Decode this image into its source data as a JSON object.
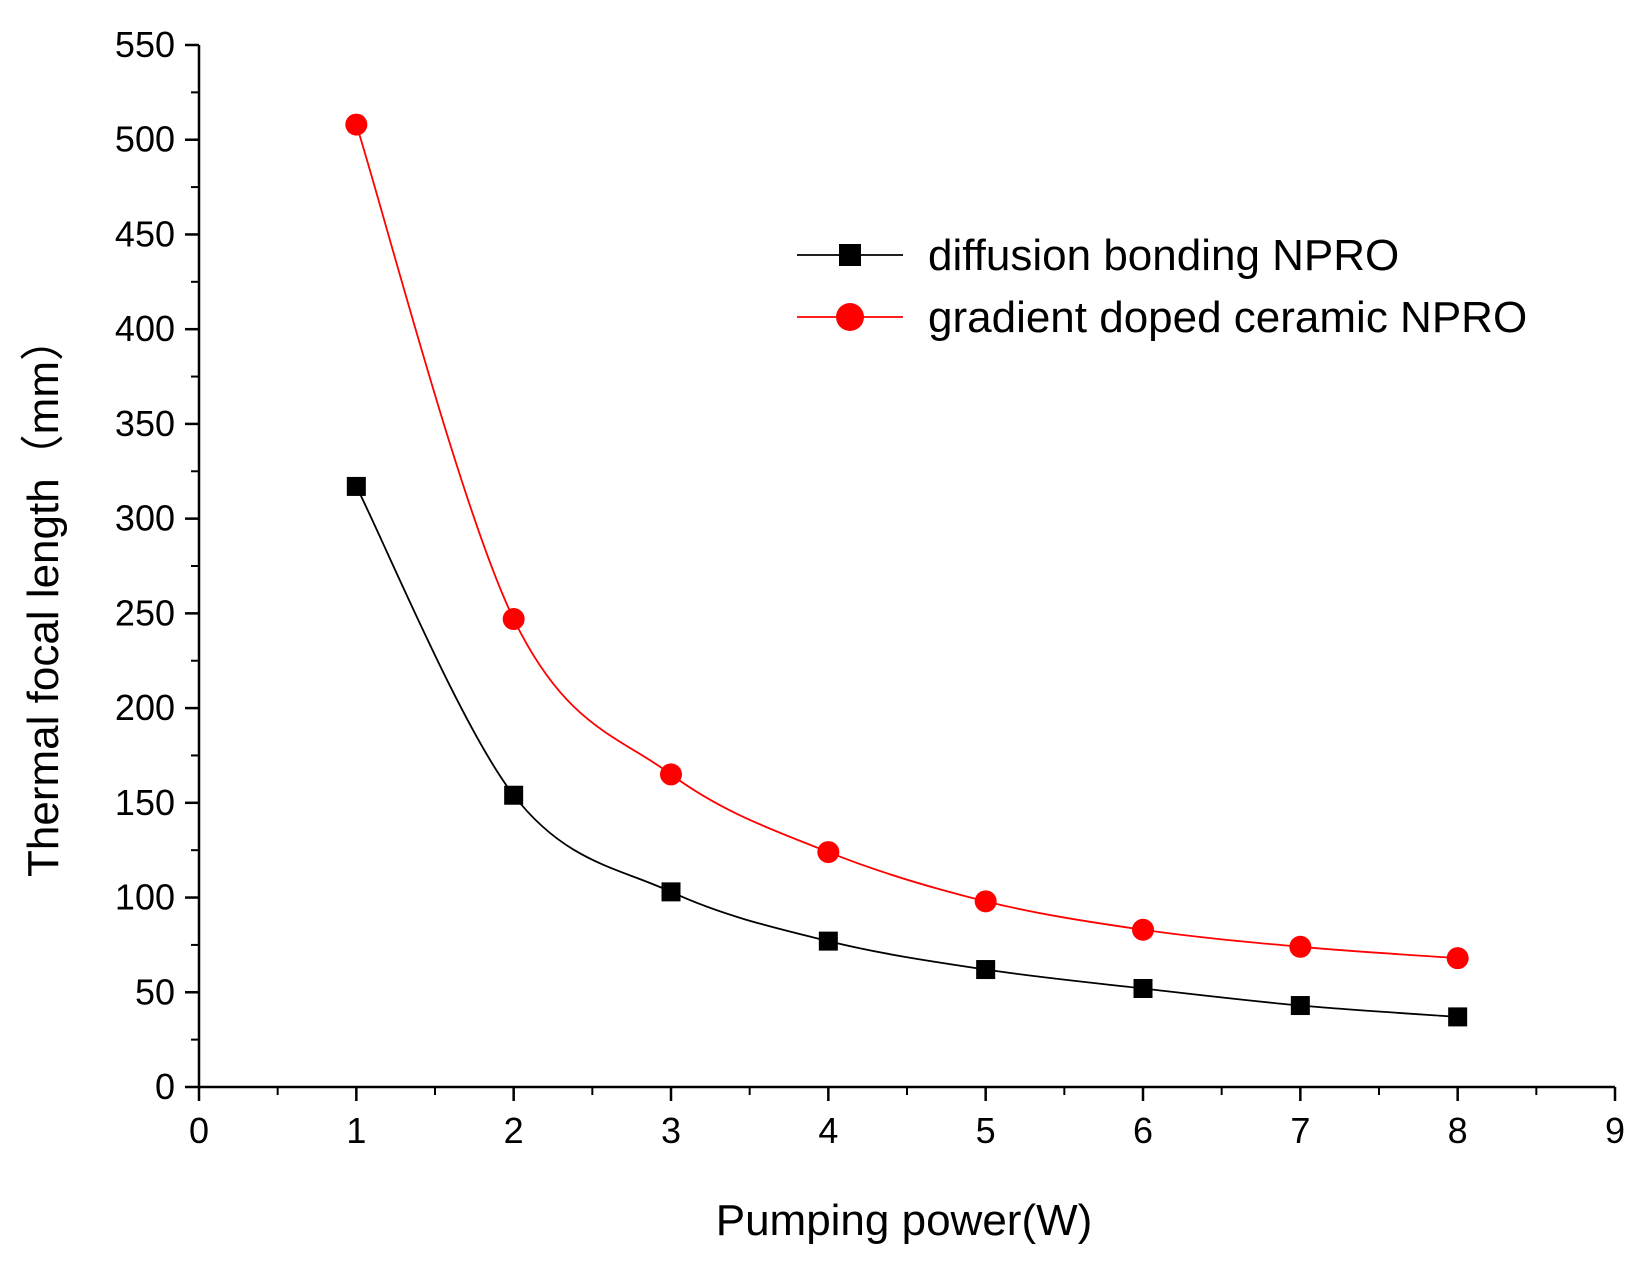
{
  "chart_data": {
    "type": "line",
    "title": "",
    "xlabel": "Pumping power(W)",
    "ylabel": "Thermal focal length（mm）",
    "xlim": [
      0,
      9
    ],
    "ylim": [
      0,
      550
    ],
    "x_ticks": [
      0,
      1,
      2,
      3,
      4,
      5,
      6,
      7,
      8,
      9
    ],
    "y_ticks": [
      0,
      50,
      100,
      150,
      200,
      250,
      300,
      350,
      400,
      450,
      500,
      550
    ],
    "grid": false,
    "legend_position": "top-right",
    "x": [
      1,
      2,
      3,
      4,
      5,
      6,
      7,
      8
    ],
    "series": [
      {
        "name": "diffusion bonding NPRO",
        "color": "#000000",
        "marker": "square",
        "values": [
          317,
          154,
          103,
          77,
          62,
          52,
          43,
          37
        ]
      },
      {
        "name": "gradient doped ceramic NPRO",
        "color": "#ff0000",
        "marker": "circle",
        "values": [
          508,
          247,
          165,
          124,
          98,
          83,
          74,
          68
        ]
      }
    ]
  }
}
